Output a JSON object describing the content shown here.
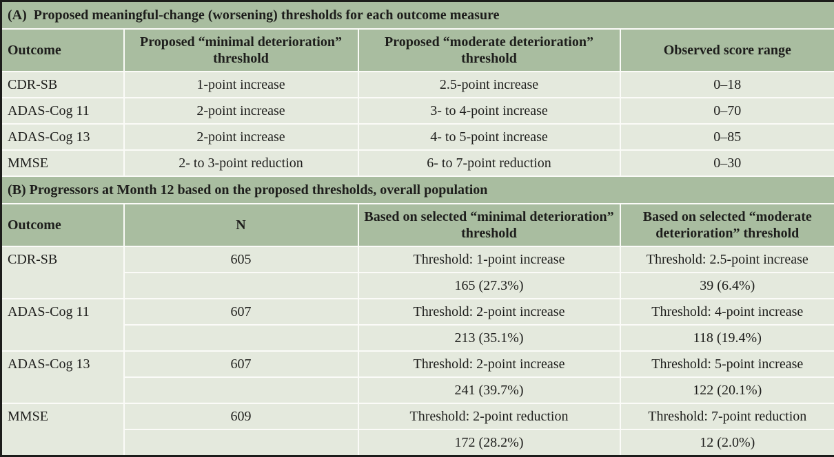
{
  "table": {
    "section_a": {
      "title": "(A)  Proposed meaningful-change (worsening) thresholds for each outcome measure",
      "columns": {
        "outcome": "Outcome",
        "minimal": "Proposed “minimal deterioration” threshold",
        "moderate": "Proposed “moderate deterioration” threshold",
        "range": "Observed score range"
      },
      "rows": [
        {
          "outcome": "CDR-SB",
          "minimal": "1-point increase",
          "moderate": "2.5-point increase",
          "range": "0–18"
        },
        {
          "outcome": "ADAS-Cog 11",
          "minimal": "2-point increase",
          "moderate": "3- to 4-point increase",
          "range": "0–70"
        },
        {
          "outcome": "ADAS-Cog 13",
          "minimal": "2-point increase",
          "moderate": "4- to 5-point increase",
          "range": "0–85"
        },
        {
          "outcome": "MMSE",
          "minimal": "2- to 3-point reduction",
          "moderate": "6- to 7-point reduction",
          "range": "0–30"
        }
      ]
    },
    "section_b": {
      "title": "(B) Progressors at Month 12 based on the proposed thresholds, overall population",
      "columns": {
        "outcome": "Outcome",
        "n": "N",
        "minimal": "Based on selected “minimal deterioration” threshold",
        "moderate": "Based on selected “moderate deterioration” threshold"
      },
      "rows": [
        {
          "outcome": "CDR-SB",
          "n": "605",
          "minimal_threshold": "Threshold: 1-point increase",
          "minimal_count": "165 (27.3%)",
          "moderate_threshold": "Threshold: 2.5-point increase",
          "moderate_count": "39 (6.4%)"
        },
        {
          "outcome": "ADAS-Cog 11",
          "n": "607",
          "minimal_threshold": "Threshold: 2-point increase",
          "minimal_count": "213 (35.1%)",
          "moderate_threshold": "Threshold: 4-point increase",
          "moderate_count": "118 (19.4%)"
        },
        {
          "outcome": "ADAS-Cog 13",
          "n": "607",
          "minimal_threshold": "Threshold: 2-point increase",
          "minimal_count": "241 (39.7%)",
          "moderate_threshold": "Threshold: 5-point increase",
          "moderate_count": "122 (20.1%)"
        },
        {
          "outcome": "MMSE",
          "n": "609",
          "minimal_threshold": "Threshold: 2-point reduction",
          "minimal_count": "172 (28.2%)",
          "moderate_threshold": "Threshold: 7-point reduction",
          "moderate_count": "12 (2.0%)"
        }
      ]
    },
    "colors": {
      "header_green": "#a9bda0",
      "row_light": "#e4e9dd",
      "border_black": "#1c1c1a",
      "divider_white": "#fbfbf8",
      "text": "#1e1e1c"
    }
  }
}
